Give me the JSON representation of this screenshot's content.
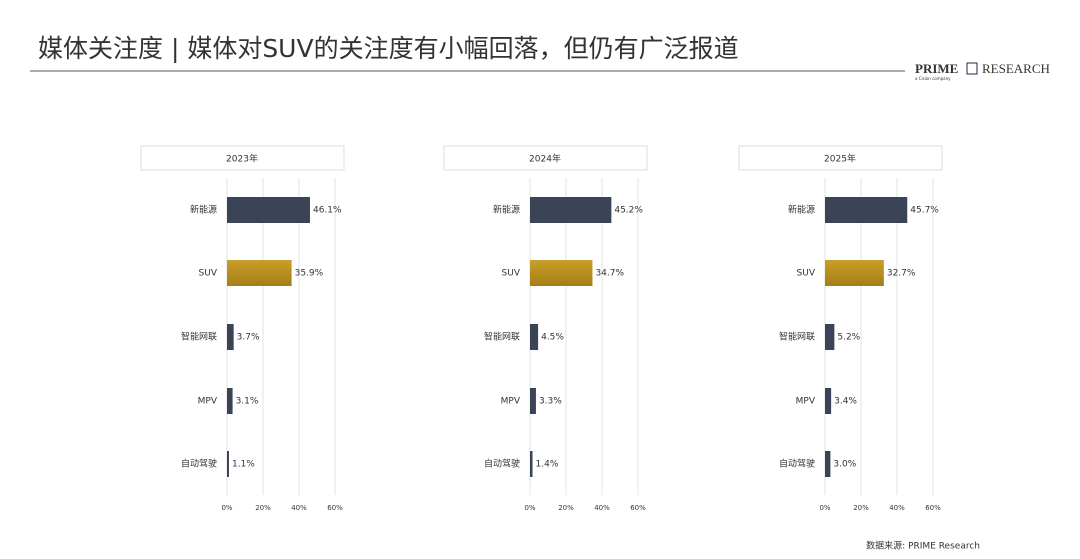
{
  "title": "媒体关注度 | 媒体对SUV的关注度有小幅回落，但仍有广泛报道",
  "logo": {
    "name": "PRIME",
    "name2": "RESEARCH",
    "tagline": "a Cision company"
  },
  "source": "数据来源: PRIME Research",
  "chart_data": [
    {
      "type": "barh",
      "title": "2023年",
      "categories": [
        "新能源",
        "SUV",
        "智能网联",
        "MPV",
        "自动驾驶"
      ],
      "values": [
        46.1,
        35.9,
        3.7,
        3.1,
        1.1
      ],
      "value_labels": [
        "46.1%",
        "35.9%",
        "3.7%",
        "3.1%",
        "1.1%"
      ],
      "colors": [
        "#3a4456",
        "#b8901f",
        "#3a4456",
        "#3a4456",
        "#3a4456"
      ],
      "xlim": [
        0,
        60
      ],
      "xticks": [
        {
          "value": 0,
          "label": "0%"
        },
        {
          "value": 20,
          "label": "20%"
        },
        {
          "value": 40,
          "label": "40%"
        },
        {
          "value": 60,
          "label": "60%"
        }
      ],
      "grid": true
    },
    {
      "type": "barh",
      "title": "2024年",
      "categories": [
        "新能源",
        "SUV",
        "智能网联",
        "MPV",
        "自动驾驶"
      ],
      "values": [
        45.2,
        34.7,
        4.5,
        3.3,
        1.4
      ],
      "value_labels": [
        "45.2%",
        "34.7%",
        "4.5%",
        "3.3%",
        "1.4%"
      ],
      "colors": [
        "#3a4456",
        "#b8901f",
        "#3a4456",
        "#3a4456",
        "#3a4456"
      ],
      "xlim": [
        0,
        60
      ],
      "xticks": [
        {
          "value": 0,
          "label": "0%"
        },
        {
          "value": 20,
          "label": "20%"
        },
        {
          "value": 40,
          "label": "40%"
        },
        {
          "value": 60,
          "label": "60%"
        }
      ],
      "grid": true
    },
    {
      "type": "barh",
      "title": "2025年",
      "categories": [
        "新能源",
        "SUV",
        "智能网联",
        "MPV",
        "自动驾驶"
      ],
      "values": [
        45.7,
        32.7,
        5.2,
        3.4,
        3.0
      ],
      "value_labels": [
        "45.7%",
        "32.7%",
        "5.2%",
        "3.4%",
        "3.0%"
      ],
      "colors": [
        "#3a4456",
        "#b8901f",
        "#3a4456",
        "#3a4456",
        "#3a4456"
      ],
      "xlim": [
        0,
        60
      ],
      "xticks": [
        {
          "value": 0,
          "label": "0%"
        },
        {
          "value": 20,
          "label": "20%"
        },
        {
          "value": 40,
          "label": "40%"
        },
        {
          "value": 60,
          "label": "60%"
        }
      ],
      "grid": true
    }
  ]
}
